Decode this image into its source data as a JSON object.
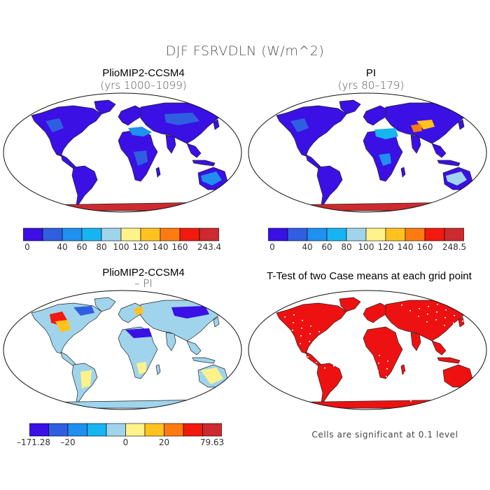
{
  "figure": {
    "title": "DJF FSRVDLN (W/m^2)"
  },
  "panels": [
    {
      "id": "top-left",
      "title": "PlioMIP2-CCSM4",
      "subtitle": "(yrs 1000–1099)",
      "colorbar": {
        "colors": [
          "#3a10e5",
          "#2f5fe0",
          "#1f8ff0",
          "#16b4f0",
          "#9fd4ec",
          "#fff28a",
          "#ffc21e",
          "#ff7a10",
          "#f21a0e",
          "#cc2a2e"
        ],
        "labels": [
          "0",
          "40",
          "60",
          "80",
          "100",
          "120",
          "140",
          "160",
          "243.4"
        ]
      }
    },
    {
      "id": "top-right",
      "title": "PI",
      "subtitle": "(yrs 80–179)",
      "colorbar": {
        "colors": [
          "#3a10e5",
          "#2f5fe0",
          "#1f8ff0",
          "#16b4f0",
          "#9fd4ec",
          "#fff28a",
          "#ffc21e",
          "#ff7a10",
          "#f21a0e",
          "#cc2a2e"
        ],
        "labels": [
          "0",
          "40",
          "60",
          "80",
          "100",
          "120",
          "140",
          "160",
          "248.5"
        ]
      }
    },
    {
      "id": "bottom-left",
      "title": "PlioMIP2-CCSM4",
      "subtitle": "– PI",
      "colorbar": {
        "colors": [
          "#3a10e5",
          "#2f5fe0",
          "#1f8ff0",
          "#16b4f0",
          "#9fd4ec",
          "#fff28a",
          "#ffc21e",
          "#ff7a10",
          "#f21a0e",
          "#cc2a2e"
        ],
        "labels": [
          "–171.28",
          "–20",
          "0",
          "20",
          "79.63"
        ]
      }
    },
    {
      "id": "bottom-right",
      "title": "T-Test of two Case means at each grid point",
      "note": "Cells are significant at 0.1 level",
      "significant_color": "#ee1111"
    }
  ]
}
